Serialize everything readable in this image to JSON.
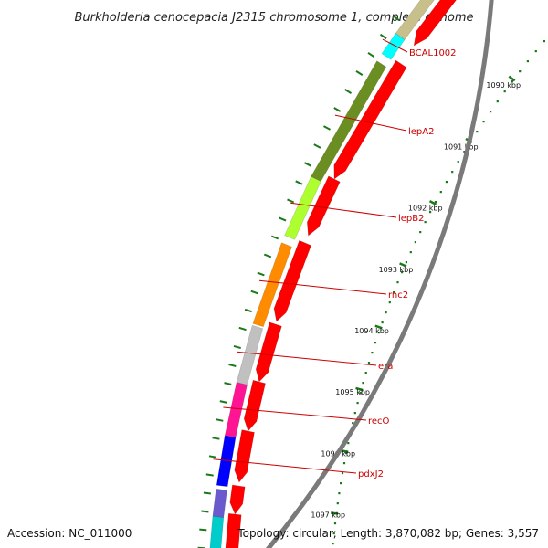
{
  "title": "Burkholderia cenocepacia J2315 chromosome 1, complete genome",
  "accession": "Accession: NC_011000",
  "topology": "Topology: circular; Length: 3,870,082 bp; Genes: 3,557",
  "ticks": [
    "1090 kbp",
    "1091 kbp",
    "1092 kbp",
    "1093 kbp",
    "1094 kbp",
    "1095 kbp",
    "1096 kbp",
    "1097 kbp"
  ],
  "genes": [
    {
      "name": "BCAL1002",
      "color": "#00ffff"
    },
    {
      "name": "lepA2",
      "color": "#6b8e23"
    },
    {
      "name": "lepB2",
      "color": "#adff2f"
    },
    {
      "name": "rnc2",
      "color": "#ff8c00"
    },
    {
      "name": "era",
      "color": "#c0c0c0"
    },
    {
      "name": "recO",
      "color": "#ff1493"
    },
    {
      "name": "pdxJ2",
      "color": "#0000ff"
    }
  ],
  "colors": {
    "cds": "#ff0000",
    "ticks": "#1a7a1a",
    "backbone": "#808080",
    "label": "#cc0000"
  }
}
